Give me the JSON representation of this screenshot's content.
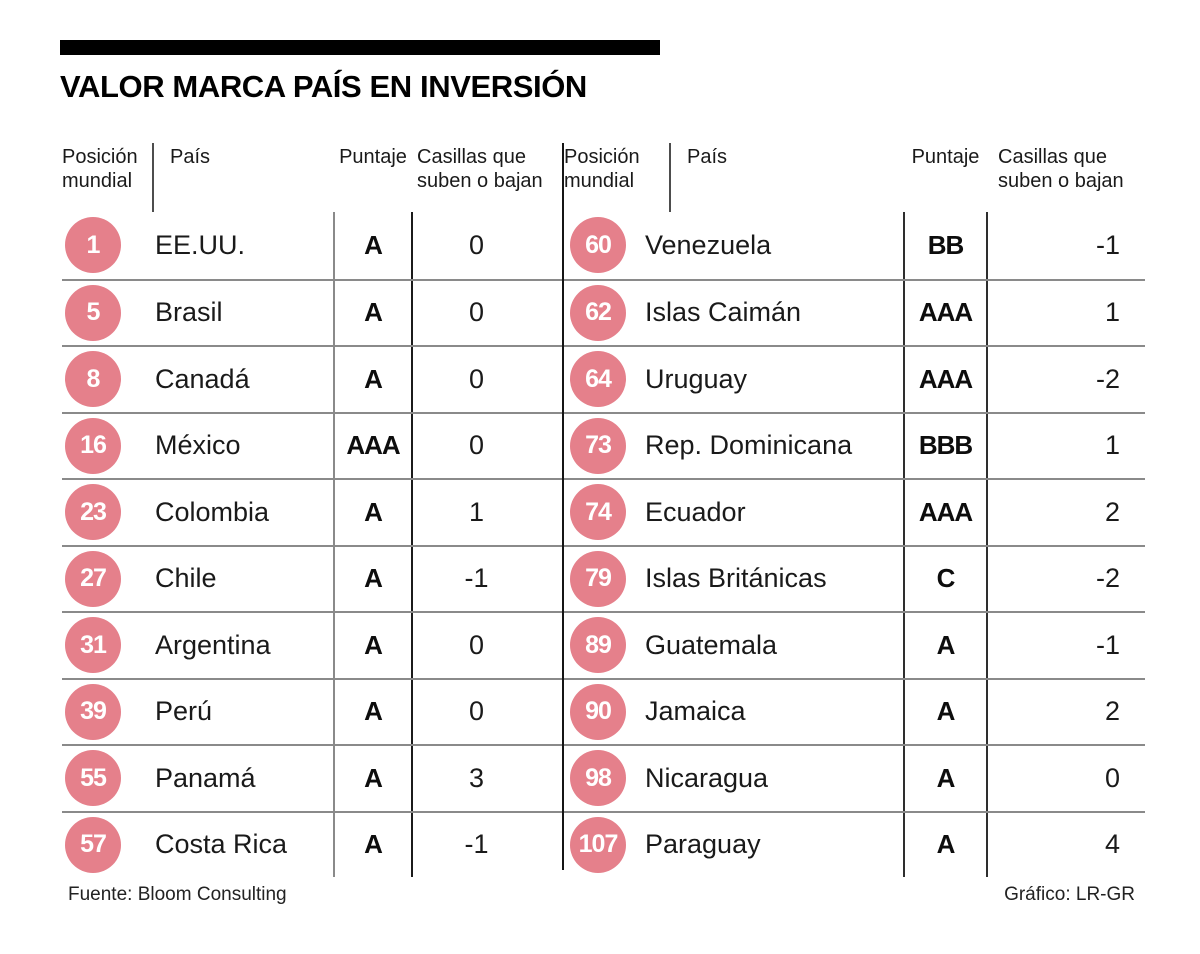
{
  "title": "VALOR MARCA PAÍS EN INVERSIÓN",
  "columns": {
    "pos": "Posición mundial",
    "pais": "País",
    "puntaje": "Puntaje",
    "casillas": "Casillas que suben o bajan"
  },
  "tables": [
    {
      "side": "left",
      "rows": [
        {
          "pos": "1",
          "pais": "EE.UU.",
          "puntaje": "A",
          "casillas": "0"
        },
        {
          "pos": "5",
          "pais": "Brasil",
          "puntaje": "A",
          "casillas": "0"
        },
        {
          "pos": "8",
          "pais": "Canadá",
          "puntaje": "A",
          "casillas": "0"
        },
        {
          "pos": "16",
          "pais": "México",
          "puntaje": "AAA",
          "casillas": "0"
        },
        {
          "pos": "23",
          "pais": "Colombia",
          "puntaje": "A",
          "casillas": "1"
        },
        {
          "pos": "27",
          "pais": "Chile",
          "puntaje": "A",
          "casillas": "-1"
        },
        {
          "pos": "31",
          "pais": "Argentina",
          "puntaje": "A",
          "casillas": "0"
        },
        {
          "pos": "39",
          "pais": "Perú",
          "puntaje": "A",
          "casillas": "0"
        },
        {
          "pos": "55",
          "pais": "Panamá",
          "puntaje": "A",
          "casillas": "3"
        },
        {
          "pos": "57",
          "pais": "Costa Rica",
          "puntaje": "A",
          "casillas": "-1"
        }
      ]
    },
    {
      "side": "right",
      "rows": [
        {
          "pos": "60",
          "pais": "Venezuela",
          "puntaje": "BB",
          "casillas": "-1"
        },
        {
          "pos": "62",
          "pais": "Islas Caimán",
          "puntaje": "AAA",
          "casillas": "1"
        },
        {
          "pos": "64",
          "pais": "Uruguay",
          "puntaje": "AAA",
          "casillas": "-2"
        },
        {
          "pos": "73",
          "pais": "Rep. Dominicana",
          "puntaje": "BBB",
          "casillas": "1"
        },
        {
          "pos": "74",
          "pais": "Ecuador",
          "puntaje": "AAA",
          "casillas": "2"
        },
        {
          "pos": "79",
          "pais": "Islas Británicas",
          "puntaje": "C",
          "casillas": "-2"
        },
        {
          "pos": "89",
          "pais": "Guatemala",
          "puntaje": "A",
          "casillas": "-1"
        },
        {
          "pos": "90",
          "pais": "Jamaica",
          "puntaje": "A",
          "casillas": "2"
        },
        {
          "pos": "98",
          "pais": "Nicaragua",
          "puntaje": "A",
          "casillas": "0"
        },
        {
          "pos": "107",
          "pais": "Paraguay",
          "puntaje": "A",
          "casillas": "4"
        }
      ]
    }
  ],
  "footer": {
    "source": "Fuente: Bloom Consulting",
    "credit": "Gráfico: LR-GR"
  },
  "colors": {
    "accent_pink": "#e5808b",
    "line_gray": "#8a8a8a",
    "line_dark": "#1b1b1b",
    "text": "#1a1a1a"
  },
  "chart_data": {
    "type": "table",
    "title": "VALOR MARCA PAÍS EN INVERSIÓN",
    "columns": [
      "Posición mundial",
      "País",
      "Puntaje",
      "Casillas que suben o bajan"
    ],
    "rows": [
      [
        1,
        "EE.UU.",
        "A",
        0
      ],
      [
        5,
        "Brasil",
        "A",
        0
      ],
      [
        8,
        "Canadá",
        "A",
        0
      ],
      [
        16,
        "México",
        "AAA",
        0
      ],
      [
        23,
        "Colombia",
        "A",
        1
      ],
      [
        27,
        "Chile",
        "A",
        -1
      ],
      [
        31,
        "Argentina",
        "A",
        0
      ],
      [
        39,
        "Perú",
        "A",
        0
      ],
      [
        55,
        "Panamá",
        "A",
        3
      ],
      [
        57,
        "Costa Rica",
        "A",
        -1
      ],
      [
        60,
        "Venezuela",
        "BB",
        -1
      ],
      [
        62,
        "Islas Caimán",
        "AAA",
        1
      ],
      [
        64,
        "Uruguay",
        "AAA",
        -2
      ],
      [
        73,
        "Rep. Dominicana",
        "BBB",
        1
      ],
      [
        74,
        "Ecuador",
        "AAA",
        2
      ],
      [
        79,
        "Islas Británicas",
        "C",
        -2
      ],
      [
        89,
        "Guatemala",
        "A",
        -1
      ],
      [
        90,
        "Jamaica",
        "A",
        2
      ],
      [
        98,
        "Nicaragua",
        "A",
        0
      ],
      [
        107,
        "Paraguay",
        "A",
        4
      ]
    ],
    "source": "Fuente: Bloom Consulting",
    "credit": "Gráfico: LR-GR"
  }
}
